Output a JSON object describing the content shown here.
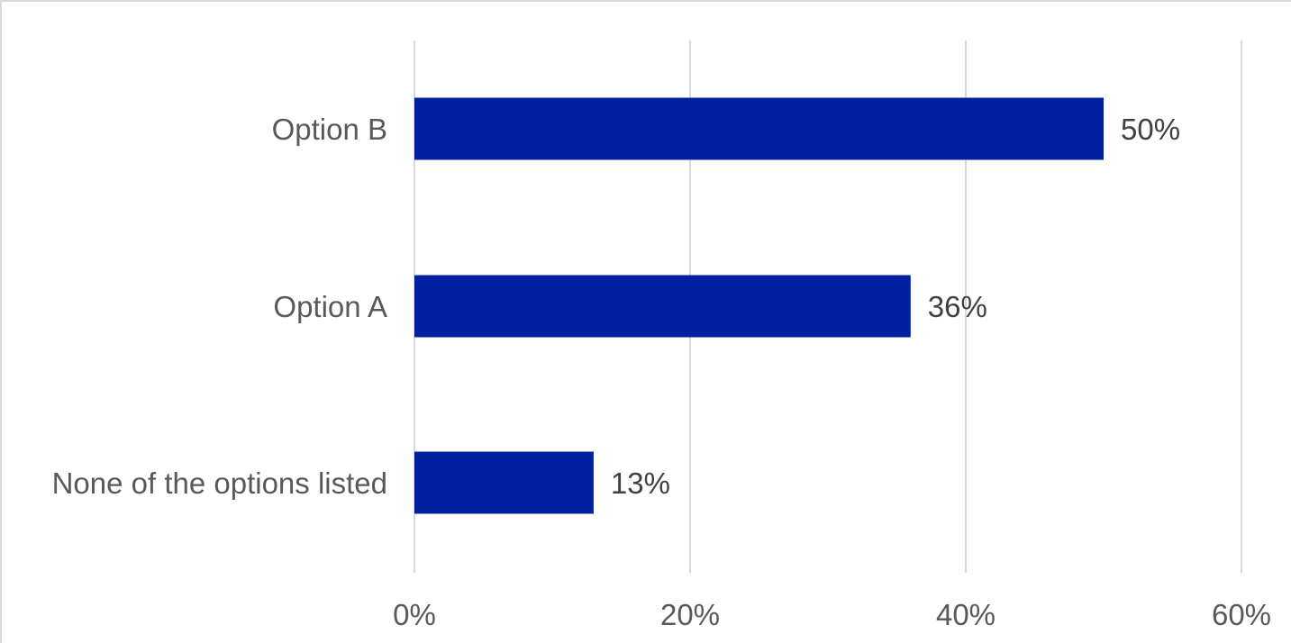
{
  "chart_data": {
    "type": "bar",
    "orientation": "horizontal",
    "categories": [
      "Option B",
      "Option A",
      "None of the options listed"
    ],
    "values": [
      50,
      36,
      13
    ],
    "data_labels": [
      "50%",
      "36%",
      "13%"
    ],
    "title": "",
    "xlabel": "",
    "ylabel": "",
    "xlim": [
      0,
      60
    ],
    "x_ticks": [
      0,
      20,
      40,
      60
    ],
    "x_tick_labels": [
      "0%",
      "20%",
      "40%",
      "60%"
    ],
    "grid": "vertical",
    "legend": "none",
    "colors": {
      "bar": "#0020a0",
      "grid": "#d9d9d9",
      "label_text": "#595959",
      "value_text": "#404040"
    }
  }
}
